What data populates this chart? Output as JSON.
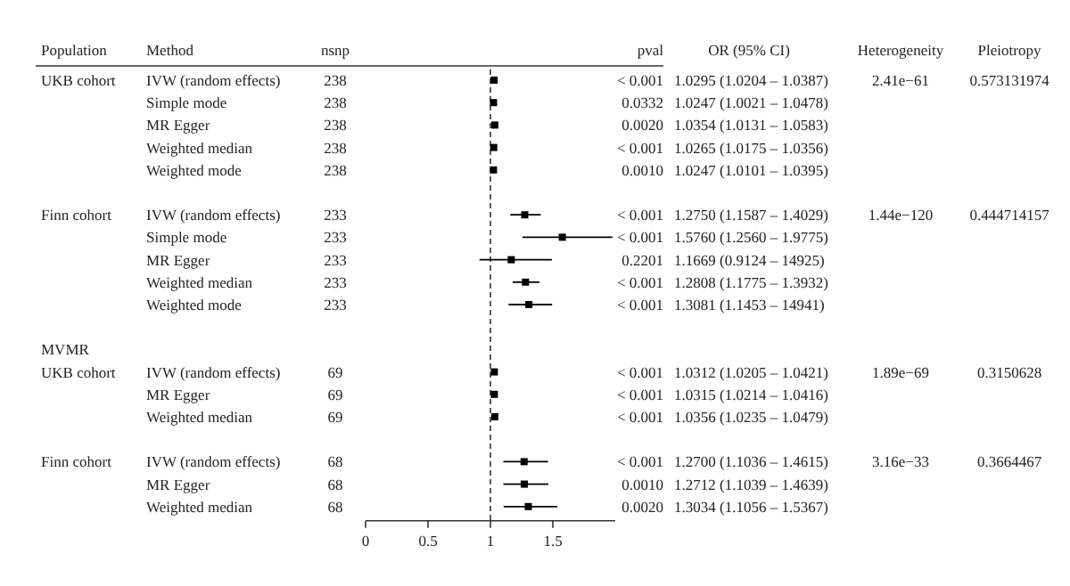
{
  "chart_data": [
    {
      "type": "other",
      "title": "Population",
      "categories": [
        "UKB cohort",
        null,
        null,
        null,
        null,
        null,
        "Finn cohort",
        null,
        null,
        null,
        null,
        null,
        "MVMR",
        "UKB cohort",
        null,
        null,
        null,
        "Finn cohort",
        null,
        null
      ]
    },
    {
      "type": "other",
      "title": "nsnp",
      "categories": [
        "238",
        "238",
        "238",
        "238",
        "238",
        null,
        "233",
        "233",
        "233",
        "233",
        "233",
        null,
        null,
        "69",
        "69",
        "69",
        null,
        "68",
        "68",
        "68"
      ]
    },
    {
      "type": "scatter",
      "orientation": "horizontal",
      "marker": "square",
      "color": "#000000",
      "ylabel": "Method",
      "categories": [
        "IVW (random effects)",
        "Simple mode",
        "MR Egger",
        "Weighted median",
        "Weighted mode",
        null,
        "IVW (random effects)",
        "Simple mode",
        "MR Egger",
        "Weighted median",
        "Weighted mode",
        null,
        null,
        "IVW (random effects)",
        "MR Egger",
        "Weighted median",
        null,
        "IVW (random effects)",
        "MR Egger",
        "Weighted median"
      ],
      "values": [
        1.0295,
        1.0247,
        1.0354,
        1.0265,
        1.0247,
        null,
        1.275,
        1.576,
        1.1669,
        1.2808,
        1.3081,
        null,
        null,
        1.0312,
        1.0315,
        1.0356,
        null,
        1.27,
        1.2712,
        1.3034
      ],
      "errors": [
        [
          1.0204,
          1.0387
        ],
        [
          1.0021,
          1.0478
        ],
        [
          1.0131,
          1.0583
        ],
        [
          1.0175,
          1.0356
        ],
        [
          1.0101,
          1.0395
        ],
        null,
        [
          1.1587,
          1.4029
        ],
        [
          1.256,
          1.9775
        ],
        [
          0.9124,
          1.4925
        ],
        [
          1.1775,
          1.3932
        ],
        [
          1.1453,
          1.4941
        ],
        null,
        null,
        [
          1.0205,
          1.0421
        ],
        [
          1.0214,
          1.0416
        ],
        [
          1.0235,
          1.0479
        ],
        null,
        [
          1.1036,
          1.4615
        ],
        [
          1.1039,
          1.4639
        ],
        [
          1.1056,
          1.5367
        ]
      ],
      "value_labels": [
        "1.0295 (1.0204 – 1.0387)",
        "1.0247 (1.0021 – 1.0478)",
        "1.0354 (1.0131 – 1.0583)",
        "1.0265 (1.0175 – 1.0356)",
        "1.0247 (1.0101 – 1.0395)",
        null,
        "1.2750 (1.1587 – 1.4029)",
        "1.5760 (1.2560 – 1.9775)",
        "1.1669 (0.9124 – 14925)",
        "1.2808 (1.1775 – 1.3932)",
        "1.3081 (1.1453 – 14941)",
        null,
        null,
        "1.0312 (1.0205 – 1.0421)",
        "1.0315 (1.0214 – 1.0416)",
        "1.0356 (1.0235 – 1.0479)",
        null,
        "1.2700 (1.1036 – 1.4615)",
        "1.2712 (1.1039 – 1.4639)",
        "1.3034 (1.1056 – 1.5367)"
      ],
      "xlim": [
        0,
        2
      ],
      "xticks": [
        0,
        0.5,
        1,
        1.5
      ],
      "ref_lines": [
        {
          "axis": "x",
          "value": 1,
          "line_style": "dashed"
        }
      ]
    },
    {
      "type": "other",
      "title": "pval",
      "categories": [
        "< 0.001",
        "0.0332",
        "0.0020",
        "< 0.001",
        "0.0010",
        null,
        "< 0.001",
        "< 0.001",
        "0.2201",
        "< 0.001",
        "< 0.001",
        null,
        null,
        "< 0.001",
        "< 0.001",
        "< 0.001",
        null,
        "< 0.001",
        "0.0010",
        "0.0020"
      ]
    },
    {
      "type": "other",
      "title": "OR (95% CI)"
    },
    {
      "type": "other",
      "title": "Heterogeneity",
      "categories": [
        "2.41e−61",
        null,
        null,
        null,
        null,
        null,
        "1.44e−120",
        null,
        null,
        null,
        null,
        null,
        null,
        "1.89e−69",
        null,
        null,
        null,
        "3.16e−33",
        null,
        null
      ]
    },
    {
      "type": "other",
      "title": "Pleiotropy",
      "categories": [
        "0.573131974",
        null,
        null,
        null,
        null,
        null,
        "0.444714157",
        null,
        null,
        null,
        null,
        null,
        null,
        "0.3150628",
        null,
        null,
        null,
        "0.3664467",
        null,
        null
      ]
    }
  ]
}
